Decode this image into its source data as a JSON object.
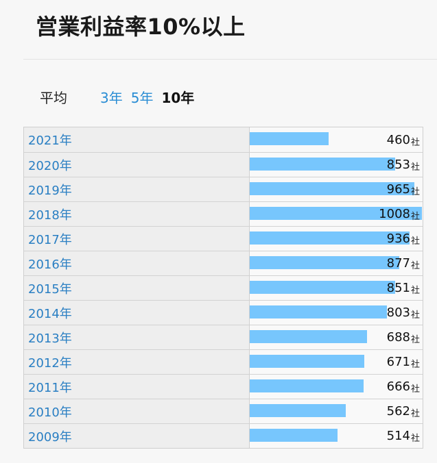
{
  "title": "営業利益率10%以上",
  "period": {
    "label": "平均",
    "tabs": [
      {
        "label": "3年",
        "active": false
      },
      {
        "label": "5年",
        "active": false
      },
      {
        "label": "10年",
        "active": true
      }
    ]
  },
  "colors": {
    "bar": "#77c6fd",
    "link": "#2a7fc3"
  },
  "chart_data": {
    "type": "bar",
    "orientation": "horizontal",
    "unit": "社",
    "xlim": [
      0,
      1008
    ],
    "categories": [
      "2021年",
      "2020年",
      "2019年",
      "2018年",
      "2017年",
      "2016年",
      "2015年",
      "2014年",
      "2013年",
      "2012年",
      "2011年",
      "2010年",
      "2009年"
    ],
    "values": [
      460,
      853,
      965,
      1008,
      936,
      877,
      851,
      803,
      688,
      671,
      666,
      562,
      514
    ]
  }
}
